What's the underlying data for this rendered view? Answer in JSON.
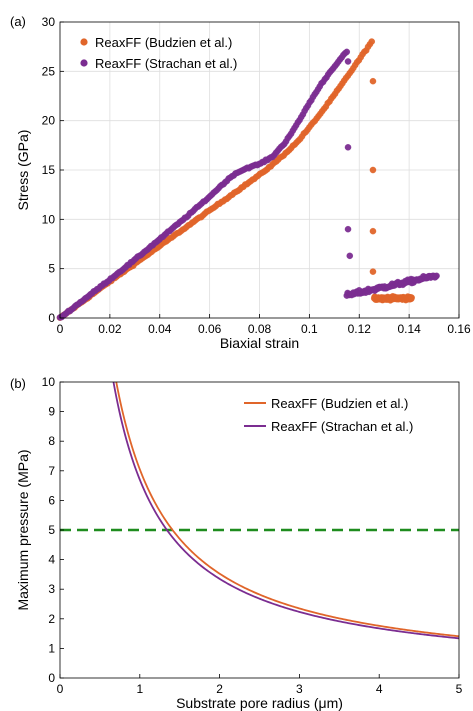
{
  "chart_data": [
    {
      "panel_label": "(a)",
      "type": "scatter",
      "xlabel": "Biaxial strain",
      "ylabel": "Stress (GPa)",
      "xlim": [
        0,
        0.16
      ],
      "ylim": [
        0,
        30
      ],
      "xticks": [
        0,
        0.02,
        0.04,
        0.06,
        0.08,
        0.1,
        0.12,
        0.14,
        0.16
      ],
      "xtick_labels": [
        "0",
        "0.02",
        "0.04",
        "0.06",
        "0.08",
        "0.1",
        "0.12",
        "0.14",
        "0.16"
      ],
      "yticks": [
        0,
        5,
        10,
        15,
        20,
        25,
        30
      ],
      "ytick_labels": [
        "0",
        "5",
        "10",
        "15",
        "20",
        "25",
        "30"
      ],
      "grid": true,
      "legend_position": "top-left",
      "series": [
        {
          "name": "ReaxFF (Budzien et al.)",
          "color": "#E0652A",
          "curve": [
            [
              0,
              0
            ],
            [
              0.01,
              1.85
            ],
            [
              0.02,
              3.7
            ],
            [
              0.03,
              5.5
            ],
            [
              0.04,
              7.3
            ],
            [
              0.05,
              9.1
            ],
            [
              0.06,
              10.9
            ],
            [
              0.07,
              12.7
            ],
            [
              0.08,
              14.5
            ],
            [
              0.085,
              15.5
            ],
            [
              0.09,
              16.6
            ],
            [
              0.095,
              17.8
            ],
            [
              0.1,
              19.3
            ],
            [
              0.105,
              20.9
            ],
            [
              0.11,
              22.6
            ],
            [
              0.115,
              24.4
            ],
            [
              0.12,
              26.2
            ],
            [
              0.125,
              28.0
            ]
          ],
          "drop_points": [
            [
              0.1255,
              24.0
            ],
            [
              0.1255,
              15.0
            ],
            [
              0.1255,
              8.8
            ],
            [
              0.1255,
              4.7
            ]
          ],
          "residual_cluster": {
            "x_range": [
              0.126,
              0.141
            ],
            "y_range": [
              1.4,
              2.6
            ]
          }
        },
        {
          "name": "ReaxFF (Strachan et al.)",
          "color": "#7B2D91",
          "curve": [
            [
              0,
              0
            ],
            [
              0.01,
              1.95
            ],
            [
              0.02,
              3.9
            ],
            [
              0.03,
              5.9
            ],
            [
              0.04,
              8.0
            ],
            [
              0.05,
              10.1
            ],
            [
              0.06,
              12.3
            ],
            [
              0.065,
              13.5
            ],
            [
              0.07,
              14.6
            ],
            [
              0.075,
              15.2
            ],
            [
              0.08,
              15.6
            ],
            [
              0.085,
              16.3
            ],
            [
              0.09,
              17.7
            ],
            [
              0.095,
              19.6
            ],
            [
              0.1,
              21.8
            ],
            [
              0.105,
              23.8
            ],
            [
              0.11,
              25.5
            ],
            [
              0.115,
              27.0
            ]
          ],
          "drop_points": [
            [
              0.1155,
              26.0
            ],
            [
              0.1155,
              17.3
            ],
            [
              0.1155,
              9.0
            ],
            [
              0.1162,
              6.3
            ]
          ],
          "residual_cluster": {
            "x_range": [
              0.115,
              0.151
            ],
            "y_range": [
              2.0,
              4.5
            ]
          }
        }
      ]
    },
    {
      "panel_label": "(b)",
      "type": "line",
      "xlabel": "Substrate pore radius (μm)",
      "ylabel": "Maximum pressure (MPa)",
      "xlim": [
        0,
        5
      ],
      "ylim": [
        0,
        10
      ],
      "xticks": [
        0,
        1,
        2,
        3,
        4,
        5
      ],
      "xtick_labels": [
        "0",
        "1",
        "2",
        "3",
        "4",
        "5"
      ],
      "yticks": [
        0,
        1,
        2,
        3,
        4,
        5,
        6,
        7,
        8,
        9,
        10
      ],
      "ytick_labels": [
        "0",
        "1",
        "2",
        "3",
        "4",
        "5",
        "6",
        "7",
        "8",
        "9",
        "10"
      ],
      "grid": false,
      "legend_position": "top-right",
      "series": [
        {
          "name": "ReaxFF (Budzien et al.)",
          "color": "#E0652A",
          "model": "inverse",
          "k": 7.05
        },
        {
          "name": "ReaxFF (Strachan et al.)",
          "color": "#7B2D91",
          "model": "inverse",
          "k": 6.7
        }
      ],
      "reference_line": {
        "y": 5,
        "color": "#1E8C1E",
        "style": "dashed"
      }
    }
  ]
}
